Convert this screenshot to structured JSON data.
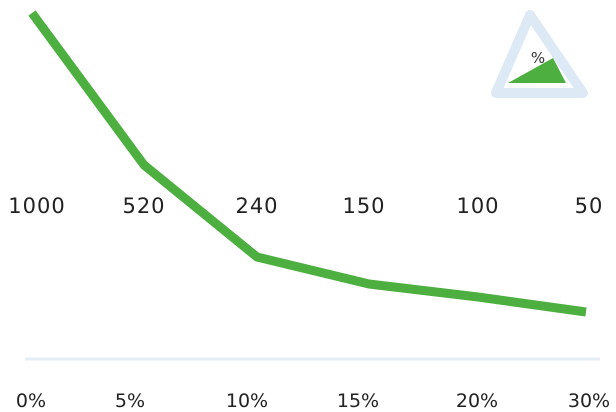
{
  "chart_data": {
    "type": "line",
    "categories": [
      "0%",
      "5%",
      "10%",
      "15%",
      "20%",
      "30%"
    ],
    "series": [
      {
        "values": [
          1000,
          520,
          240,
          150,
          100,
          50
        ]
      }
    ],
    "value_labels": [
      "1000",
      "520",
      "240",
      "150",
      "100",
      "50"
    ],
    "grid": false,
    "colors": {
      "line": "#4caf3f",
      "baseline": "#e4eef7",
      "badge_border": "#dde9f5",
      "badge_fill": "#4caf3f"
    }
  },
  "badge": {
    "icon": "percent-slope-icon",
    "symbol": "%"
  }
}
